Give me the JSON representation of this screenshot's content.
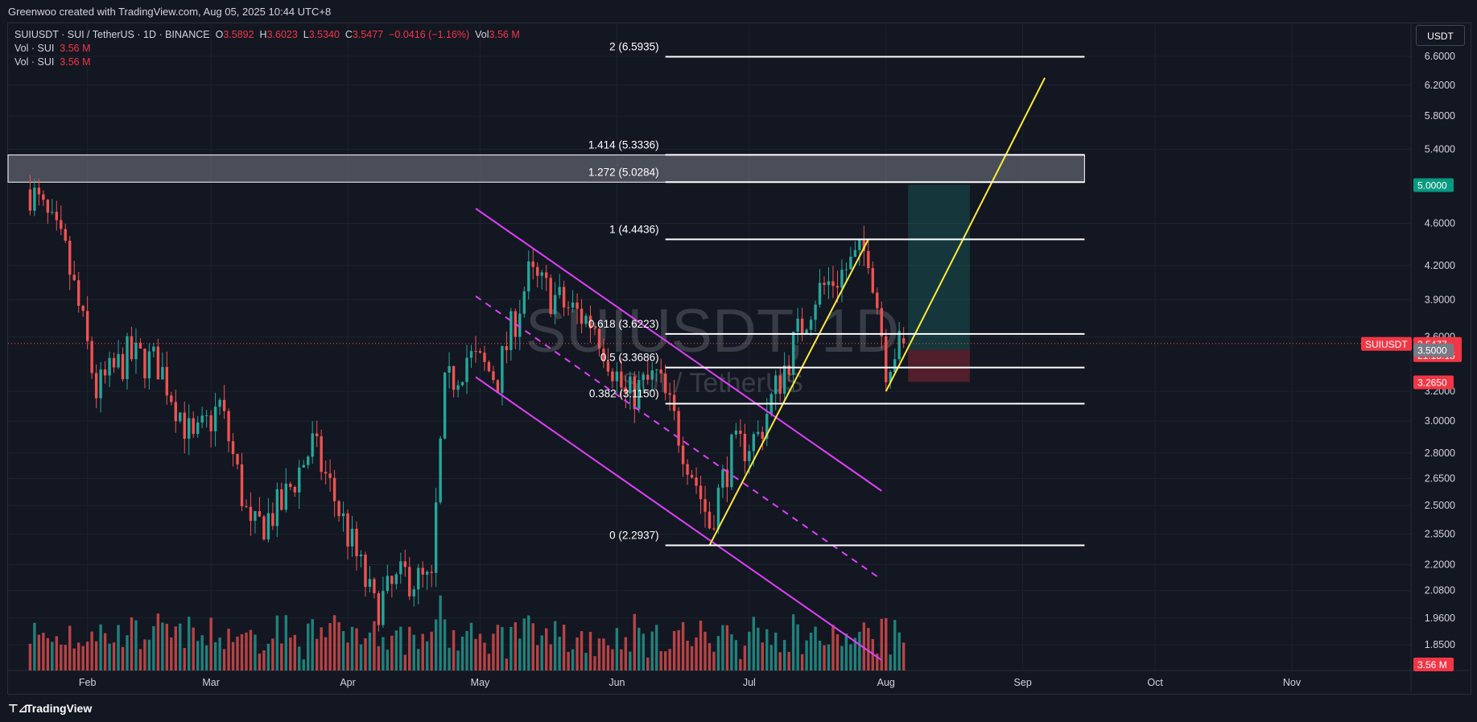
{
  "header": {
    "credit": "Greenwoo created with TradingView.com, Aug 05, 2025 10:44 UTC+8"
  },
  "legend": {
    "symbol": "SUIUSDT · SUI / TetherUS · 1D · BINANCE",
    "open_label": "O",
    "open": "3.5892",
    "high_label": "H",
    "high": "3.6023",
    "low_label": "L",
    "low": "3.5340",
    "close_label": "C",
    "close": "3.5477",
    "change": "−0.0416 (−1.16%)",
    "vol_label": "Vol",
    "vol": "3.56 M",
    "vol_rows": [
      {
        "label": "Vol · SUI",
        "value": "3.56 M"
      },
      {
        "label": "Vol · SUI",
        "value": "3.56 M"
      }
    ]
  },
  "currency_button": "USDT",
  "watermark": {
    "symbol": "SUIUSDT, 1D",
    "name": "SUI / TetherUS"
  },
  "footer": {
    "brand": "TradingView",
    "logo_glyph": "⊤⊿"
  },
  "colors": {
    "background": "#131722",
    "up": "#26a69a",
    "down": "#ef5350",
    "channel": "#e040fb",
    "trend": "#ffeb3b",
    "fib": "#ffffff",
    "target": "#22ab94",
    "stop": "#f23645"
  },
  "chart_data": {
    "type": "candlestick",
    "symbol": "SUIUSDT",
    "timeframe": "1D",
    "y_scale": "log",
    "ylim": [
      1.75,
      7.1
    ],
    "x_axis_labels": [
      {
        "label": "Feb",
        "date": "2025-02-01"
      },
      {
        "label": "Mar",
        "date": "2025-03-01"
      },
      {
        "label": "Apr",
        "date": "2025-04-01"
      },
      {
        "label": "May",
        "date": "2025-05-01"
      },
      {
        "label": "Jun",
        "date": "2025-06-01"
      },
      {
        "label": "Jul",
        "date": "2025-07-01"
      },
      {
        "label": "Aug",
        "date": "2025-08-01"
      },
      {
        "label": "Sep",
        "date": "2025-09-01"
      },
      {
        "label": "Oct",
        "date": "2025-10-01"
      },
      {
        "label": "Nov",
        "date": "2025-11-01"
      }
    ],
    "y_ticks": [
      "6.6000",
      "6.2000",
      "5.8000",
      "5.4000",
      "4.6000",
      "4.2000",
      "3.9000",
      "3.6000",
      "3.2000",
      "3.0000",
      "2.8000",
      "2.6500",
      "2.5000",
      "2.3500",
      "2.2000",
      "2.0800",
      "1.9600",
      "1.8500"
    ],
    "price_path": [
      {
        "date": "2025-01-19",
        "price": 4.95
      },
      {
        "date": "2025-01-27",
        "price": 4.3
      },
      {
        "date": "2025-02-03",
        "price": 3.2
      },
      {
        "date": "2025-02-10",
        "price": 3.45
      },
      {
        "date": "2025-02-17",
        "price": 3.4
      },
      {
        "date": "2025-02-25",
        "price": 2.85
      },
      {
        "date": "2025-03-03",
        "price": 3.1
      },
      {
        "date": "2025-03-10",
        "price": 2.35
      },
      {
        "date": "2025-03-17",
        "price": 2.5
      },
      {
        "date": "2025-03-24",
        "price": 2.85
      },
      {
        "date": "2025-04-01",
        "price": 2.35
      },
      {
        "date": "2025-04-07",
        "price": 2.0
      },
      {
        "date": "2025-04-14",
        "price": 2.15
      },
      {
        "date": "2025-04-20",
        "price": 2.1
      },
      {
        "date": "2025-04-23",
        "price": 3.2
      },
      {
        "date": "2025-04-28",
        "price": 3.45
      },
      {
        "date": "2025-05-05",
        "price": 3.3
      },
      {
        "date": "2025-05-12",
        "price": 4.1
      },
      {
        "date": "2025-05-20",
        "price": 3.85
      },
      {
        "date": "2025-05-27",
        "price": 3.7
      },
      {
        "date": "2025-06-03",
        "price": 3.15
      },
      {
        "date": "2025-06-10",
        "price": 3.3
      },
      {
        "date": "2025-06-16",
        "price": 2.85
      },
      {
        "date": "2025-06-22",
        "price": 2.4
      },
      {
        "date": "2025-06-27",
        "price": 2.8
      },
      {
        "date": "2025-07-03",
        "price": 2.9
      },
      {
        "date": "2025-07-10",
        "price": 3.45
      },
      {
        "date": "2025-07-16",
        "price": 3.95
      },
      {
        "date": "2025-07-21",
        "price": 4.1
      },
      {
        "date": "2025-07-28",
        "price": 4.35
      },
      {
        "date": "2025-08-01",
        "price": 3.4
      },
      {
        "date": "2025-08-03",
        "price": 3.5
      },
      {
        "date": "2025-08-05",
        "price": 3.5477
      }
    ],
    "fib_levels": [
      {
        "label": "2 (6.5935)",
        "price": 6.5935
      },
      {
        "label": "1.414 (5.3336)",
        "price": 5.3336
      },
      {
        "label": "1.272 (5.0284)",
        "price": 5.0284
      },
      {
        "label": "1 (4.4436)",
        "price": 4.4436
      },
      {
        "label": "0.618 (3.6223)",
        "price": 3.6223
      },
      {
        "label": "0.5 (3.3686)",
        "price": 3.3686
      },
      {
        "label": "0.382 (3.1150)",
        "price": 3.115
      },
      {
        "label": "0 (2.2937)",
        "price": 2.2937
      }
    ],
    "fib_range": {
      "start": "2025-06-12",
      "end": "2025-09-15"
    },
    "resistance_zone": {
      "from_price": 5.0284,
      "to_price": 5.3336,
      "start": "2025-01-14",
      "end": "2025-09-15"
    },
    "channel": {
      "upper": [
        {
          "date": "2025-04-30",
          "price": 4.75
        },
        {
          "date": "2025-07-31",
          "price": 2.58
        }
      ],
      "mid": [
        {
          "date": "2025-04-30",
          "price": 3.93
        },
        {
          "date": "2025-07-31",
          "price": 2.13
        }
      ],
      "lower": [
        {
          "date": "2025-04-30",
          "price": 3.3
        },
        {
          "date": "2025-07-31",
          "price": 1.79
        }
      ]
    },
    "trendlines": [
      [
        {
          "date": "2025-06-22",
          "price": 2.2937
        },
        {
          "date": "2025-07-28",
          "price": 4.4436
        }
      ],
      [
        {
          "date": "2025-08-01",
          "price": 3.2
        },
        {
          "date": "2025-09-06",
          "price": 6.3
        }
      ]
    ],
    "position": {
      "start": "2025-08-06",
      "end": "2025-08-20",
      "entry": 3.5,
      "target": 5.0,
      "stop": 3.265
    },
    "price_labels": [
      {
        "text": "5.0000",
        "price": 5.0,
        "color": "#089981"
      },
      {
        "text": "SUIUSDT",
        "price": 3.5477,
        "color": "#f23645"
      },
      {
        "text": "3.5477",
        "sub": "21:15:15",
        "price": 3.5477,
        "color": "#f23645"
      },
      {
        "text": "3.5000",
        "price": 3.5,
        "color": "#787b86"
      },
      {
        "text": "3.2650",
        "price": 3.265,
        "color": "#f23645"
      }
    ],
    "volume_label": {
      "text": "3.56 M",
      "color": "#f23645"
    },
    "last_price": 3.5477
  }
}
